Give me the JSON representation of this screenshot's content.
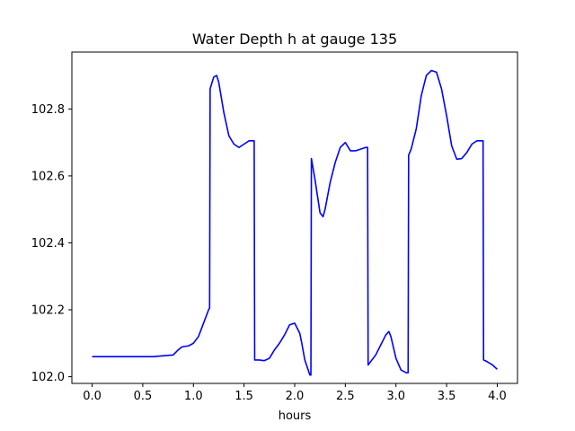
{
  "chart_data": {
    "type": "line",
    "title": "Water Depth h at gauge 135",
    "xlabel": "hours",
    "ylabel": "",
    "xlim": [
      -0.2,
      4.2
    ],
    "ylim": [
      101.98,
      102.97
    ],
    "xticks": [
      0.0,
      0.5,
      1.0,
      1.5,
      2.0,
      2.5,
      3.0,
      3.5,
      4.0
    ],
    "xtick_labels": [
      "0.0",
      "0.5",
      "1.0",
      "1.5",
      "2.0",
      "2.5",
      "3.0",
      "3.5",
      "4.0"
    ],
    "yticks": [
      102.0,
      102.2,
      102.4,
      102.6,
      102.8
    ],
    "ytick_labels": [
      "102.0",
      "102.2",
      "102.4",
      "102.6",
      "102.8"
    ],
    "grid": false,
    "series": [
      {
        "color": "#0000ff",
        "x": [
          0.0,
          0.3,
          0.6,
          0.8,
          0.85,
          0.88,
          0.9,
          0.95,
          1.0,
          1.05,
          1.1,
          1.15,
          1.16,
          1.165,
          1.2,
          1.23,
          1.25,
          1.3,
          1.35,
          1.4,
          1.45,
          1.5,
          1.55,
          1.6,
          1.605,
          1.65,
          1.7,
          1.75,
          1.8,
          1.85,
          1.9,
          1.95,
          2.0,
          2.05,
          2.07,
          2.1,
          2.15,
          2.16,
          2.165,
          2.2,
          2.25,
          2.28,
          2.3,
          2.35,
          2.4,
          2.45,
          2.5,
          2.55,
          2.6,
          2.65,
          2.7,
          2.72,
          2.725,
          2.8,
          2.85,
          2.9,
          2.93,
          2.95,
          3.0,
          3.05,
          3.1,
          3.12,
          3.125,
          3.15,
          3.2,
          3.25,
          3.3,
          3.35,
          3.4,
          3.45,
          3.5,
          3.55,
          3.6,
          3.65,
          3.7,
          3.75,
          3.8,
          3.85,
          3.86,
          3.865,
          3.9,
          3.95,
          4.0
        ],
        "y": [
          102.06,
          102.06,
          102.06,
          102.065,
          102.08,
          102.088,
          102.09,
          102.092,
          102.1,
          102.12,
          102.16,
          102.2,
          102.205,
          102.86,
          102.895,
          102.9,
          102.88,
          102.79,
          102.72,
          102.695,
          102.685,
          102.695,
          102.705,
          102.705,
          102.05,
          102.05,
          102.048,
          102.055,
          102.08,
          102.1,
          102.125,
          102.155,
          102.16,
          102.13,
          102.1,
          102.05,
          102.005,
          102.005,
          102.652,
          102.59,
          102.49,
          102.478,
          102.5,
          102.58,
          102.64,
          102.685,
          102.7,
          102.675,
          102.675,
          102.68,
          102.685,
          102.685,
          102.035,
          102.065,
          102.095,
          102.125,
          102.135,
          102.12,
          102.055,
          102.02,
          102.012,
          102.012,
          102.662,
          102.68,
          102.74,
          102.84,
          102.9,
          102.915,
          102.91,
          102.86,
          102.78,
          102.69,
          102.65,
          102.652,
          102.67,
          102.695,
          102.705,
          102.705,
          102.705,
          102.05,
          102.045,
          102.036,
          102.022
        ]
      }
    ]
  }
}
